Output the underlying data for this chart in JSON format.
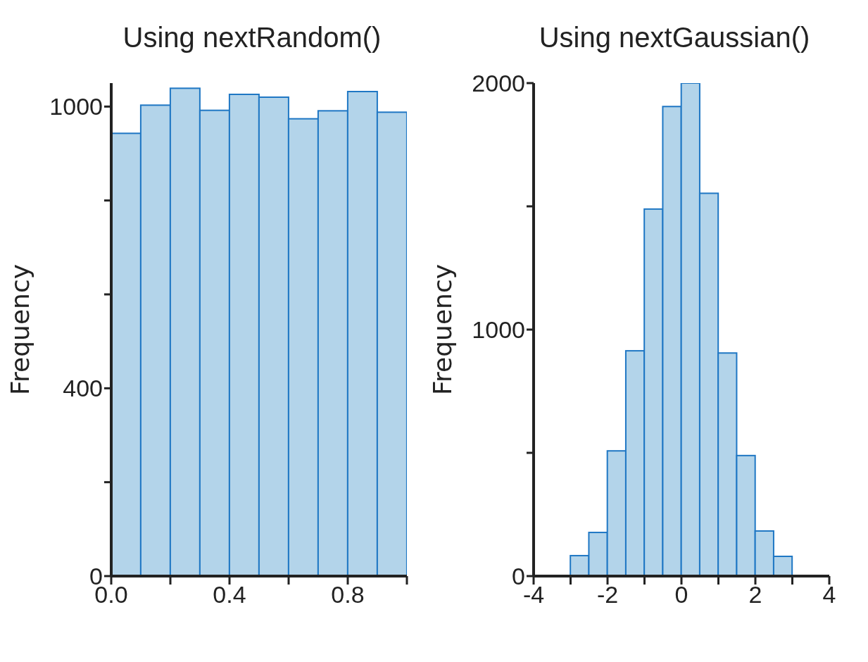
{
  "chart_data": [
    {
      "type": "histogram",
      "title": "Using nextRandom()",
      "ylabel": "Frequency",
      "bins": [
        0,
        0.1,
        0.2,
        0.3,
        0.4,
        0.5,
        0.6,
        0.7,
        0.8,
        0.9,
        1.0
      ],
      "values": [
        943,
        1003,
        1039,
        992,
        1026,
        1020,
        974,
        991,
        1032,
        988
      ],
      "color": "#b3d4ea",
      "xlim": [
        0,
        1
      ],
      "xticks": [
        {
          "value": 0,
          "label": "0.0"
        },
        {
          "value": 0.2,
          "label": null
        },
        {
          "value": 0.4,
          "label": "0.4"
        },
        {
          "value": 0.6,
          "label": null
        },
        {
          "value": 0.8,
          "label": "0.8"
        },
        {
          "value": 1.0,
          "label": null
        }
      ],
      "ylim": [
        0,
        1050
      ],
      "yticks": [
        0,
        {
          "value": 200,
          "label": null
        },
        400,
        {
          "value": 600,
          "label": null
        },
        {
          "value": 800,
          "label": null
        },
        1000
      ],
      "grid": false,
      "legend": false
    },
    {
      "type": "histogram",
      "title": "Using nextGaussian()",
      "ylabel": "Frequency",
      "bins": [
        -3,
        -2.5,
        -2,
        -1.5,
        -1,
        -0.5,
        0,
        0.5,
        1,
        1.5,
        2,
        2.5,
        3
      ],
      "values": [
        83,
        177,
        508,
        914,
        1489,
        1905,
        2000,
        1553,
        905,
        489,
        183,
        80
      ],
      "color": "#b3d4ea",
      "xlim": [
        -4,
        4
      ],
      "xticks": [
        -4,
        {
          "value": -3,
          "label": null
        },
        -2,
        {
          "value": -1,
          "label": null
        },
        0,
        {
          "value": 1,
          "label": null
        },
        2,
        {
          "value": 3,
          "label": null
        },
        4
      ],
      "ylim": [
        0,
        2000
      ],
      "yticks": [
        0,
        {
          "value": 500,
          "label": null
        },
        1000,
        {
          "value": 1500,
          "label": null
        },
        2000
      ],
      "grid": false,
      "legend": false
    }
  ]
}
